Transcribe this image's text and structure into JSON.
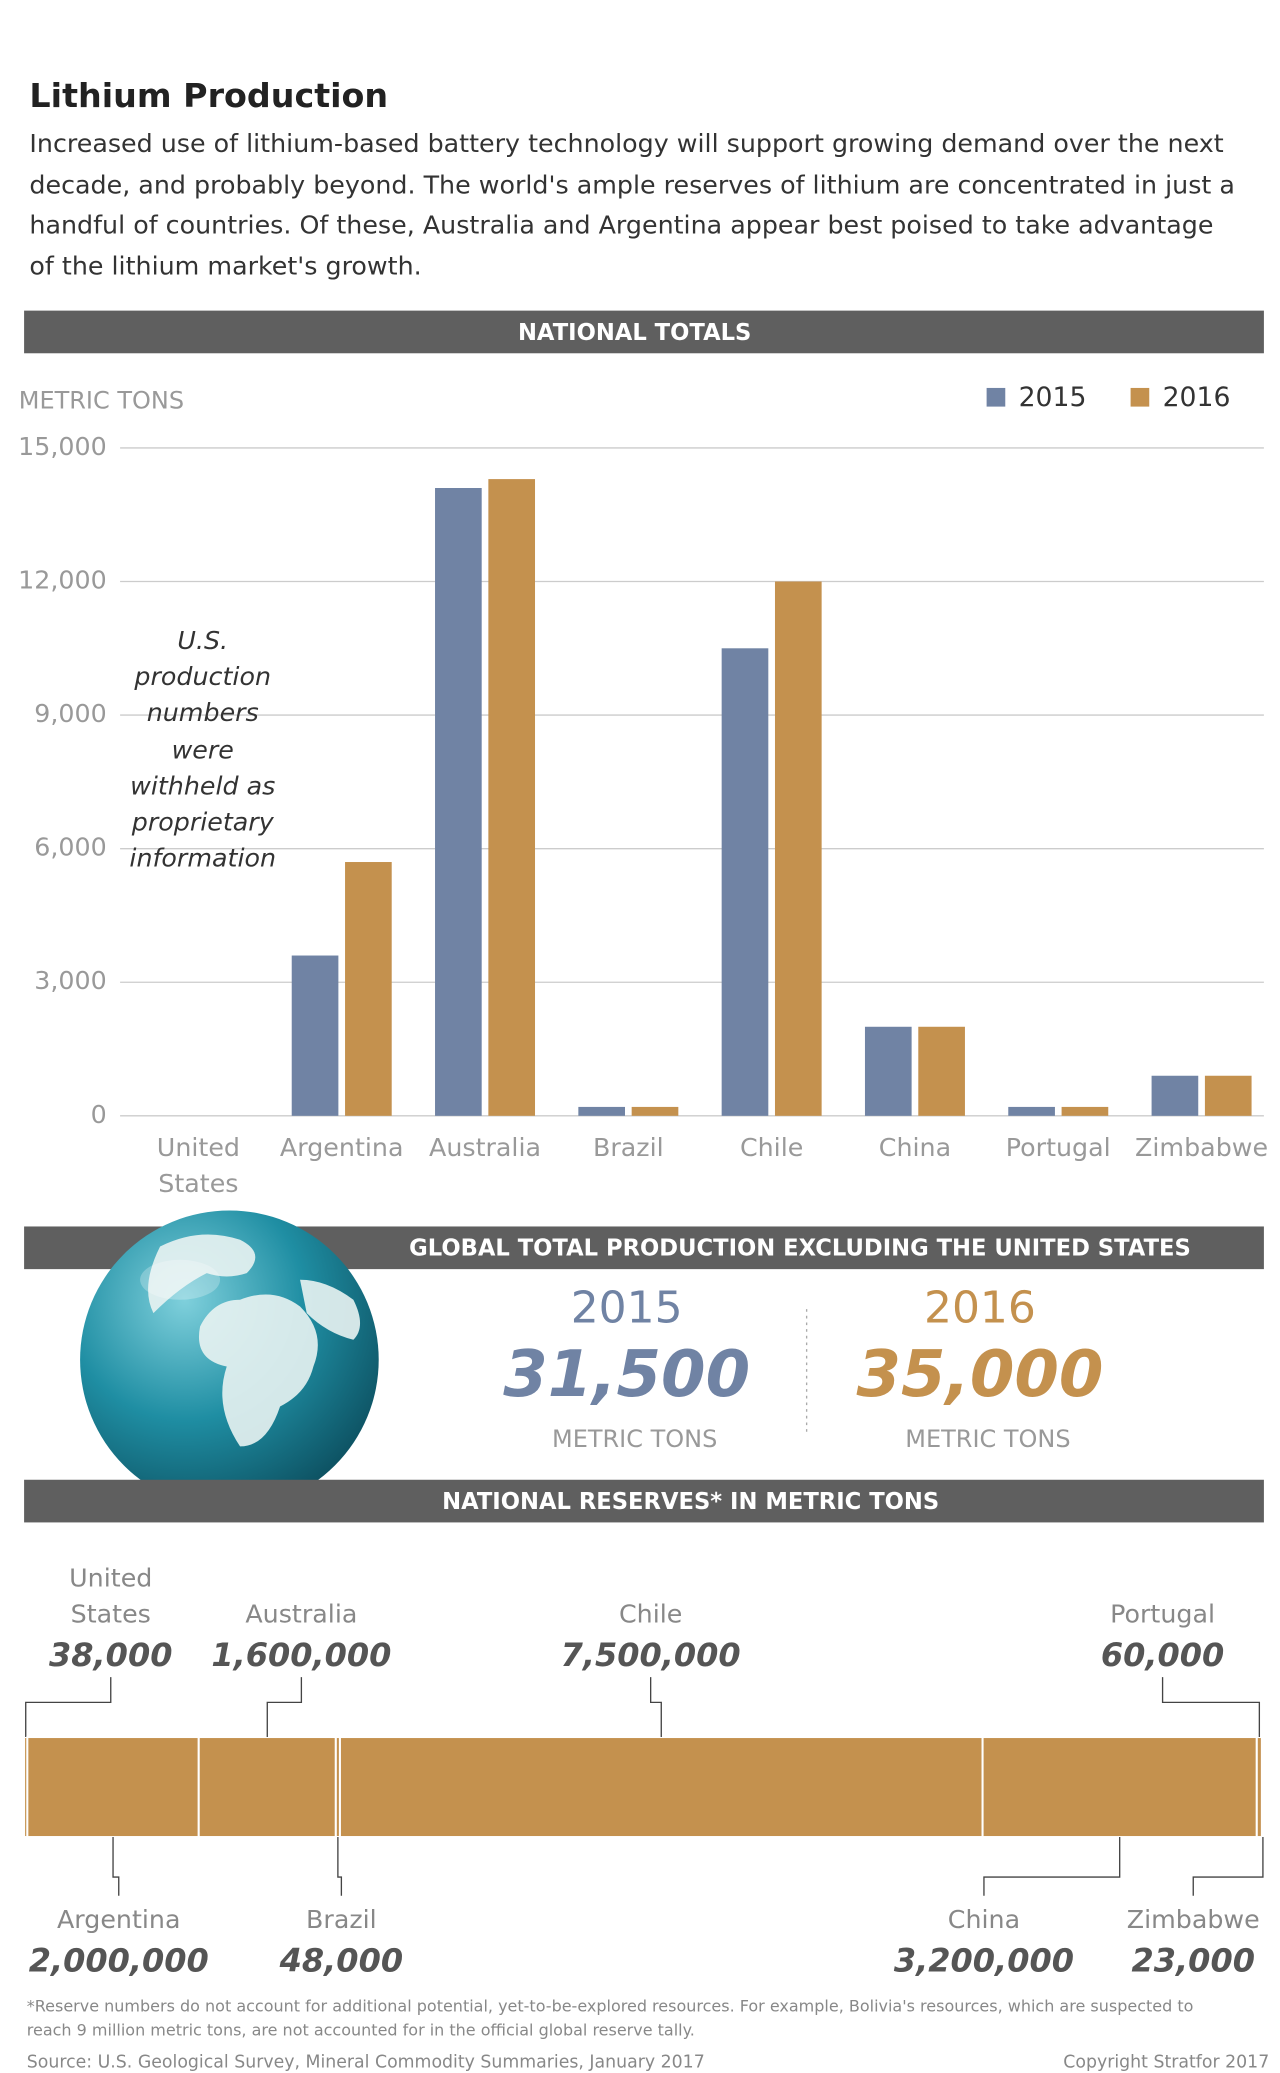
{
  "header": {
    "title": "Lithium Production",
    "text": "Increased use of lithium-based battery technology will support growing demand over the next decade, and probably beyond. The world's ample reserves of lithium are concentrated in just a handful of countries. Of these, Australia and Argentina appear best poised to take advantage of the lithium market's growth."
  },
  "chart_data": [
    {
      "type": "bar",
      "title": "NATIONAL TOTALS",
      "y_label": "METRIC TONS",
      "categories": [
        "United States",
        "Argentina",
        "Australia",
        "Brazil",
        "Chile",
        "China",
        "Portugal",
        "Zimbabwe"
      ],
      "series": [
        {
          "name": "2015",
          "color": "#7083a4",
          "values": [
            null,
            3600,
            14100,
            200,
            10500,
            2000,
            200,
            900
          ]
        },
        {
          "name": "2016",
          "color": "#c4914e",
          "values": [
            null,
            5700,
            14300,
            200,
            12000,
            2000,
            200,
            900
          ]
        }
      ],
      "ylim": [
        0,
        15000
      ],
      "yticks": [
        0,
        {
          "value": 3000,
          "label": "3,000"
        },
        {
          "value": 6000,
          "label": "6,000"
        },
        {
          "value": 9000,
          "label": "9,000"
        },
        {
          "value": 12000,
          "label": "12,000"
        },
        {
          "value": 15000,
          "label": "15,000"
        }
      ],
      "grid": true,
      "legend": "top-right",
      "annotation": "U.S. production numbers were withheld as proprietary information"
    },
    {
      "type": "proportion_bar",
      "title": "NATIONAL RESERVES* IN METRIC TONS",
      "color": "#c4914e",
      "categories": [
        "United States",
        "Argentina",
        "Australia",
        "Brazil",
        "Chile",
        "China",
        "Portugal",
        "Zimbabwe"
      ],
      "values": [
        38000,
        2000000,
        1600000,
        48000,
        7500000,
        3200000,
        60000,
        23000
      ],
      "value_labels": [
        "38,000",
        "2,000,000",
        "1,600,000",
        "48,000",
        "7,500,000",
        "3,200,000",
        "60,000",
        "23,000"
      ]
    }
  ],
  "global_totals": {
    "title": "GLOBAL TOTAL PRODUCTION EXCLUDING THE UNITED STATES",
    "items": [
      {
        "year": "2015",
        "value": "31,500",
        "unit": "METRIC TONS",
        "color": "#7083a4"
      },
      {
        "year": "2016",
        "value": "35,000",
        "unit": "METRIC TONS",
        "color": "#c4914e"
      }
    ]
  },
  "footnote": "*Reserve numbers do not account for additional potential, yet-to-be-explored resources. For example, Bolivia's resources, which are suspected to reach 9 million metric tons, are not accounted for in the official global reserve tally.",
  "source": "Source: U.S. Geological Survey, Mineral Commodity Summaries, January 2017",
  "copyright": "Copyright Stratfor 2017"
}
